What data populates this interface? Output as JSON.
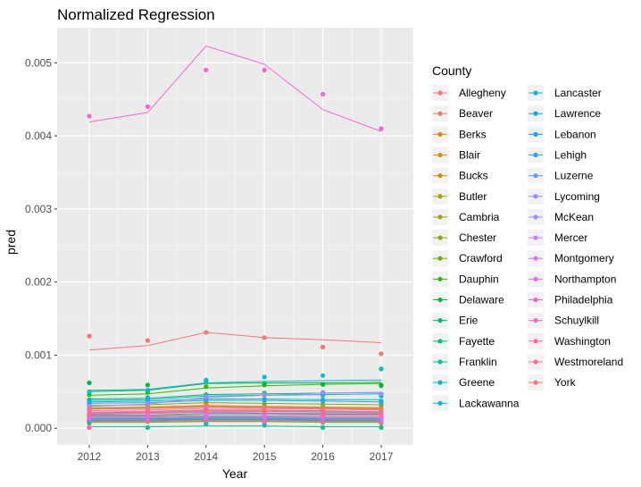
{
  "chart_data": {
    "type": "line",
    "title": "Normalized Regression",
    "xlabel": "Year",
    "ylabel": "pred",
    "x": [
      2012,
      2013,
      2014,
      2015,
      2016,
      2017
    ],
    "xlim": [
      2011.45,
      2017.55
    ],
    "ylim": [
      -0.00023,
      0.00548
    ],
    "yticks": [
      0.0,
      0.001,
      0.002,
      0.003,
      0.004,
      0.005
    ],
    "ytick_labels": [
      "0.000",
      "0.001",
      "0.002",
      "0.003",
      "0.004",
      "0.005"
    ],
    "grid": true,
    "legend": {
      "title": "County",
      "placement": "right",
      "columns": 2
    },
    "series": [
      {
        "name": "Allegheny",
        "color": "#F8766D",
        "line": [
          0.00107,
          0.00113,
          0.00131,
          0.00124,
          0.00121,
          0.00117
        ],
        "points": [
          0.00126,
          0.0012,
          0.00131,
          0.00124,
          0.00111,
          0.00102
        ]
      },
      {
        "name": "Beaver",
        "color": "#F27D52",
        "line": [
          0.00022,
          0.00023,
          0.00025,
          0.00025,
          0.00024,
          0.00023
        ],
        "points": [
          0.00021,
          0.00022,
          0.00026,
          0.00024,
          0.00023,
          0.00024
        ]
      },
      {
        "name": "Berks",
        "color": "#E58700",
        "line": [
          0.00028,
          0.00029,
          0.00031,
          0.0003,
          0.00029,
          0.00028
        ],
        "points": [
          0.00027,
          0.0003,
          0.00032,
          0.00029,
          0.00028,
          0.00027
        ]
      },
      {
        "name": "Blair",
        "color": "#D89000",
        "line": [
          0.0001,
          0.0001,
          0.00011,
          0.00011,
          0.0001,
          0.0001
        ],
        "points": [
          9e-05,
          0.00011,
          0.00011,
          0.0001,
          0.0001,
          9e-05
        ]
      },
      {
        "name": "Bucks",
        "color": "#C99800",
        "line": [
          0.00026,
          0.00027,
          0.00029,
          0.00028,
          0.00027,
          0.00026
        ],
        "points": [
          0.00025,
          0.00028,
          0.0003,
          0.00027,
          0.00026,
          0.00025
        ]
      },
      {
        "name": "Butler",
        "color": "#B79F00",
        "line": [
          0.00012,
          0.00012,
          0.00013,
          0.00013,
          0.00012,
          0.00012
        ],
        "points": [
          0.00011,
          0.00013,
          0.00013,
          0.00012,
          0.00012,
          0.00011
        ]
      },
      {
        "name": "Cambria",
        "color": "#A3A500",
        "line": [
          0.00016,
          0.00016,
          0.00017,
          0.00017,
          0.00016,
          0.00016
        ],
        "points": [
          0.00015,
          0.00017,
          0.00018,
          0.00016,
          0.00016,
          0.00015
        ]
      },
      {
        "name": "Chester",
        "color": "#8CAB00",
        "line": [
          0.00031,
          0.00032,
          0.00035,
          0.00034,
          0.00033,
          0.00032
        ],
        "points": [
          0.0003,
          0.00033,
          0.00036,
          0.00033,
          0.00032,
          0.00031
        ]
      },
      {
        "name": "Crawford",
        "color": "#6BB100",
        "line": [
          8e-05,
          8e-05,
          9e-05,
          9e-05,
          8e-05,
          8e-05
        ],
        "points": [
          7e-05,
          9e-05,
          9e-05,
          8e-05,
          8e-05,
          7e-05
        ]
      },
      {
        "name": "Dauphin",
        "color": "#39B600",
        "line": [
          0.00045,
          0.00047,
          0.00055,
          0.00058,
          0.0006,
          0.00061
        ],
        "points": [
          0.00046,
          0.00049,
          0.00057,
          0.00059,
          0.0006,
          0.00058
        ]
      },
      {
        "name": "Delaware",
        "color": "#00BA38",
        "line": [
          0.0005,
          0.00052,
          0.00061,
          0.00062,
          0.00062,
          0.00063
        ],
        "points": [
          0.00062,
          0.00059,
          0.00064,
          0.00061,
          0.0006,
          0.00059
        ]
      },
      {
        "name": "Erie",
        "color": "#00BD5C",
        "line": [
          0.0004,
          0.00041,
          0.00046,
          0.00047,
          0.00048,
          0.00049
        ],
        "points": [
          0.00039,
          0.00042,
          0.00046,
          0.00048,
          0.00047,
          0.00046
        ]
      },
      {
        "name": "Fayette",
        "color": "#00BF7D",
        "line": [
          0.00018,
          0.00018,
          0.0002,
          0.0002,
          0.00019,
          0.00019
        ],
        "points": [
          0.00017,
          0.00019,
          0.00021,
          0.00019,
          0.00019,
          0.00018
        ]
      },
      {
        "name": "Franklin",
        "color": "#00C19A",
        "line": [
          2e-05,
          2e-05,
          3e-05,
          3e-05,
          2e-05,
          2e-05
        ],
        "points": [
          1e-05,
          1e-05,
          6e-05,
          4e-05,
          1e-05,
          1e-05
        ]
      },
      {
        "name": "Greene",
        "color": "#00C0B5",
        "line": [
          0.00036,
          0.00037,
          0.0004,
          0.0004,
          0.00039,
          0.00039
        ],
        "points": [
          0.00035,
          0.00038,
          0.00041,
          0.0004,
          0.00039,
          0.00037
        ]
      },
      {
        "name": "Lackawanna",
        "color": "#00BCD2",
        "line": [
          0.00052,
          0.00053,
          0.00062,
          0.00064,
          0.00065,
          0.00066
        ],
        "points": [
          0.0005,
          0.00052,
          0.00066,
          0.0007,
          0.00072,
          0.00081
        ]
      },
      {
        "name": "Lancaster",
        "color": "#00B6EB",
        "line": [
          0.00038,
          0.00039,
          0.00044,
          0.00045,
          0.00046,
          0.00047
        ],
        "points": [
          0.00037,
          0.0004,
          0.00045,
          0.00046,
          0.00045,
          0.00044
        ]
      },
      {
        "name": "Lawrence",
        "color": "#00ABFD",
        "line": [
          0.00011,
          0.00011,
          0.00012,
          0.00012,
          0.00011,
          0.00011
        ],
        "points": [
          0.0001,
          0.00012,
          0.00012,
          0.00011,
          0.00011,
          0.0001
        ]
      },
      {
        "name": "Lebanon",
        "color": "#00A5FF",
        "line": [
          0.00013,
          0.00013,
          0.00014,
          0.00014,
          0.00013,
          0.00013
        ],
        "points": [
          0.00012,
          0.00014,
          0.00015,
          0.00013,
          0.00013,
          0.00012
        ]
      },
      {
        "name": "Lehigh",
        "color": "#28A1FF",
        "line": [
          0.00034,
          0.00035,
          0.00038,
          0.00038,
          0.00037,
          0.00036
        ],
        "points": [
          0.00033,
          0.00036,
          0.00039,
          0.00038,
          0.00037,
          0.00035
        ]
      },
      {
        "name": "Luzerne",
        "color": "#619CFF",
        "line": [
          0.0002,
          0.00021,
          0.00023,
          0.00023,
          0.00022,
          0.00021
        ],
        "points": [
          0.00019,
          0.00022,
          0.00024,
          0.00022,
          0.00022,
          0.0002
        ]
      },
      {
        "name": "Lycoming",
        "color": "#8F91FF",
        "line": [
          0.00014,
          0.00014,
          0.00015,
          0.00015,
          0.00014,
          0.00014
        ],
        "points": [
          0.00013,
          0.00015,
          0.00016,
          0.00014,
          0.00014,
          0.00013
        ]
      },
      {
        "name": "McKean",
        "color": "#A58AFF",
        "line": [
          0.0003,
          0.00033,
          0.00042,
          0.00045,
          0.00048,
          0.00049
        ],
        "points": [
          0.0003,
          0.00034,
          0.00043,
          0.00046,
          0.00049,
          0.00047
        ]
      },
      {
        "name": "Mercer",
        "color": "#C77CFF",
        "line": [
          0.00017,
          0.00017,
          0.00019,
          0.00019,
          0.00018,
          0.00018
        ],
        "points": [
          0.00016,
          0.00018,
          0.0002,
          0.00018,
          0.00018,
          0.00017
        ]
      },
      {
        "name": "Montgomery",
        "color": "#DF70F8",
        "line": [
          0.00024,
          0.00025,
          0.00027,
          0.00027,
          0.00026,
          0.00025
        ],
        "points": [
          0.00023,
          0.00026,
          0.00028,
          0.00026,
          0.00025,
          0.00024
        ]
      },
      {
        "name": "Northampton",
        "color": "#EC69EF",
        "line": [
          0.00015,
          0.00015,
          0.00016,
          0.00016,
          0.00015,
          0.00015
        ],
        "points": [
          0.00014,
          0.00016,
          0.00017,
          0.00015,
          0.00015,
          0.00014
        ]
      },
      {
        "name": "Philadelphia",
        "color": "#FB61D7",
        "line": [
          0.00419,
          0.00432,
          0.00523,
          0.00498,
          0.00436,
          0.00406
        ],
        "points": [
          0.00427,
          0.0044,
          0.0049,
          0.0049,
          0.00457,
          0.0041
        ]
      },
      {
        "name": "Schuylkill",
        "color": "#FF64C1",
        "line": [
          9e-05,
          9e-05,
          0.0001,
          0.0001,
          9e-05,
          9e-05
        ],
        "points": [
          1e-05,
          0.0001,
          0.00011,
          9e-05,
          9e-05,
          8e-05
        ]
      },
      {
        "name": "Washington",
        "color": "#FF67A4",
        "line": [
          0.00019,
          0.0002,
          0.00022,
          0.00021,
          0.0002,
          0.0002
        ],
        "points": [
          0.00018,
          0.00021,
          0.00023,
          0.00021,
          0.0002,
          0.00019
        ]
      },
      {
        "name": "Westmoreland",
        "color": "#FF6C90",
        "line": [
          0.00021,
          0.00022,
          0.00024,
          0.00024,
          0.00023,
          0.00022
        ],
        "points": [
          0.0002,
          0.00023,
          0.00025,
          0.00023,
          0.00022,
          0.00021
        ]
      },
      {
        "name": "York",
        "color": "#F8766D",
        "line": [
          0.00027,
          0.00028,
          0.0003,
          0.00029,
          0.00028,
          0.00027
        ],
        "points": [
          0.00026,
          0.00029,
          0.00031,
          0.00028,
          0.00027,
          0.00026
        ]
      }
    ]
  }
}
